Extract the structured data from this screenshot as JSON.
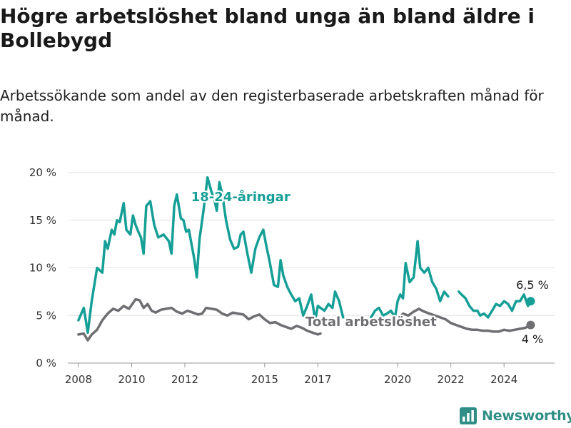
{
  "title": "Högre arbetslöshet bland unga än bland äldre i Bollebygd",
  "subtitle": "Arbetssökande som andel av den registerbaserade arbetskraften månad för månad.",
  "brand": {
    "name": "Newsworthy",
    "logo_icon": "bar-chart-logo-icon"
  },
  "colors": {
    "youth": "#159f96",
    "total": "#6e6e73",
    "grid": "#e2e2e2",
    "axis": "#999999",
    "brand": "#2f8f86"
  },
  "chart_data": {
    "type": "line",
    "title": "Högre arbetslöshet bland unga än bland äldre i Bollebygd",
    "subtitle": "Arbetssökande som andel av den registerbaserade arbetskraften månad för månad.",
    "xlabel": "",
    "ylabel": "",
    "xlim": [
      2007.6,
      2025.9
    ],
    "ylim": [
      0,
      20
    ],
    "yticks": [
      0,
      5,
      10,
      15,
      20
    ],
    "ytick_labels": [
      "0 %",
      "5 %",
      "10 %",
      "15 %",
      "20 %"
    ],
    "xticks": [
      2008,
      2010,
      2012,
      2015,
      2017,
      2020,
      2022,
      2024
    ],
    "xtick_labels": [
      "2008",
      "2010",
      "2012",
      "2015",
      "2017",
      "2020",
      "2022",
      "2024"
    ],
    "grid": "horizontal",
    "legend": "none",
    "series": [
      {
        "name": "18-24-åringar",
        "color": "#159f96",
        "end_label": "6,5 %",
        "x": [
          2008.0,
          2008.2,
          2008.35,
          2008.5,
          2008.7,
          2008.9,
          2009.0,
          2009.1,
          2009.25,
          2009.35,
          2009.45,
          2009.55,
          2009.7,
          2009.8,
          2009.95,
          2010.05,
          2010.15,
          2010.25,
          2010.35,
          2010.45,
          2010.55,
          2010.7,
          2010.85,
          2011.0,
          2011.2,
          2011.4,
          2011.5,
          2011.6,
          2011.7,
          2011.85,
          2011.95,
          2012.05,
          2012.15,
          2012.25,
          2012.35,
          2012.45,
          2012.55,
          2012.7,
          2012.85,
          2013.0,
          2013.1,
          2013.2,
          2013.3,
          2013.4,
          2013.55,
          2013.7,
          2013.85,
          2014.0,
          2014.1,
          2014.2,
          2014.35,
          2014.5,
          2014.65,
          2014.8,
          2014.95,
          2015.05,
          2015.2,
          2015.35,
          2015.5,
          2015.6,
          2015.7,
          2015.85,
          2016.0,
          2016.15,
          2016.3,
          2016.45,
          2016.6,
          2016.75,
          2016.9,
          2017.0,
          2017.1,
          2017.25,
          2017.4,
          2017.55,
          2017.65,
          2017.8,
          2017.95,
          null,
          2019.0,
          2019.15,
          2019.3,
          2019.45,
          2019.6,
          2019.75,
          2019.9,
          2020.0,
          2020.1,
          2020.2,
          2020.3,
          2020.45,
          2020.6,
          2020.75,
          2020.85,
          2021.0,
          2021.15,
          2021.3,
          2021.45,
          2021.6,
          2021.75,
          2021.9,
          null,
          2022.3,
          2022.4,
          2022.55,
          2022.7,
          2022.85,
          2023.0,
          2023.1,
          2023.25,
          2023.4,
          2023.55,
          2023.7,
          2023.85,
          2024.0,
          2024.15,
          2024.3,
          2024.45,
          2024.6,
          2024.75,
          2024.9,
          2025.0
        ],
        "y": [
          4.5,
          5.8,
          3.2,
          6.5,
          10.0,
          9.5,
          12.8,
          12.0,
          14.0,
          13.5,
          15.0,
          14.8,
          16.8,
          14.0,
          13.5,
          15.5,
          14.5,
          13.8,
          13.2,
          11.5,
          16.5,
          17.0,
          14.5,
          13.2,
          13.5,
          12.8,
          11.5,
          16.5,
          17.7,
          15.2,
          15.0,
          13.8,
          14.0,
          12.5,
          11.0,
          9.0,
          13.0,
          16.0,
          19.5,
          18.0,
          17.3,
          16.0,
          19.0,
          17.8,
          15.0,
          13.0,
          12.0,
          12.2,
          13.5,
          13.8,
          11.5,
          9.5,
          12.0,
          13.2,
          14.0,
          12.5,
          10.5,
          8.2,
          8.0,
          10.8,
          9.2,
          8.0,
          7.2,
          6.5,
          6.8,
          5.0,
          6.0,
          7.2,
          4.5,
          6.0,
          5.8,
          5.5,
          6.2,
          5.8,
          7.5,
          6.5,
          4.8,
          null,
          4.8,
          5.5,
          5.8,
          5.0,
          5.2,
          5.5,
          4.8,
          6.5,
          7.2,
          6.8,
          10.5,
          8.5,
          9.0,
          12.8,
          10.0,
          9.5,
          10.0,
          8.5,
          7.8,
          6.5,
          7.5,
          7.0,
          null,
          7.5,
          7.2,
          6.8,
          6.0,
          5.5,
          5.5,
          5.0,
          5.2,
          4.8,
          5.5,
          6.2,
          6.0,
          6.5,
          6.2,
          5.5,
          6.5,
          6.5,
          7.2,
          6.0,
          6.5
        ],
        "label_xy": [
          2014.1,
          17.0
        ]
      },
      {
        "name": "Total arbetslöshet",
        "color": "#6e6e73",
        "end_label": "4 %",
        "x": [
          2008.0,
          2008.2,
          2008.35,
          2008.5,
          2008.7,
          2008.9,
          2009.1,
          2009.3,
          2009.5,
          2009.7,
          2009.9,
          2010.0,
          2010.15,
          2010.3,
          2010.45,
          2010.6,
          2010.75,
          2010.9,
          2011.1,
          2011.3,
          2011.5,
          2011.7,
          2011.9,
          2012.1,
          2012.3,
          2012.5,
          2012.65,
          2012.8,
          2013.0,
          2013.2,
          2013.4,
          2013.6,
          2013.8,
          2014.0,
          2014.2,
          2014.4,
          2014.6,
          2014.8,
          2015.0,
          2015.2,
          2015.4,
          2015.6,
          2015.8,
          2016.0,
          2016.2,
          2016.4,
          2016.6,
          2016.8,
          2017.0,
          2017.1,
          null,
          2020.0,
          2020.2,
          2020.4,
          2020.6,
          2020.8,
          2021.0,
          2021.2,
          2021.4,
          2021.6,
          2021.8,
          2022.0,
          2022.2,
          2022.4,
          2022.6,
          2022.8,
          2023.0,
          2023.2,
          2023.4,
          2023.6,
          2023.8,
          2024.0,
          2024.2,
          2024.4,
          2024.6,
          2024.8,
          2025.0
        ],
        "y": [
          3.0,
          3.1,
          2.4,
          3.0,
          3.5,
          4.5,
          5.2,
          5.7,
          5.5,
          6.0,
          5.7,
          6.1,
          6.7,
          6.6,
          5.8,
          6.2,
          5.5,
          5.3,
          5.6,
          5.7,
          5.8,
          5.4,
          5.2,
          5.5,
          5.3,
          5.1,
          5.2,
          5.8,
          5.7,
          5.6,
          5.2,
          5.0,
          5.3,
          5.2,
          5.1,
          4.6,
          4.9,
          5.1,
          4.6,
          4.2,
          4.3,
          4.0,
          3.8,
          3.6,
          3.9,
          3.7,
          3.4,
          3.2,
          3.0,
          3.1,
          null,
          4.5,
          5.2,
          5.0,
          5.4,
          5.7,
          5.4,
          5.2,
          5.0,
          4.8,
          4.6,
          4.2,
          4.0,
          3.8,
          3.6,
          3.5,
          3.5,
          3.4,
          3.4,
          3.3,
          3.3,
          3.5,
          3.4,
          3.5,
          3.6,
          3.7,
          4.0
        ],
        "label_xy": [
          2019.0,
          3.9
        ]
      }
    ]
  }
}
